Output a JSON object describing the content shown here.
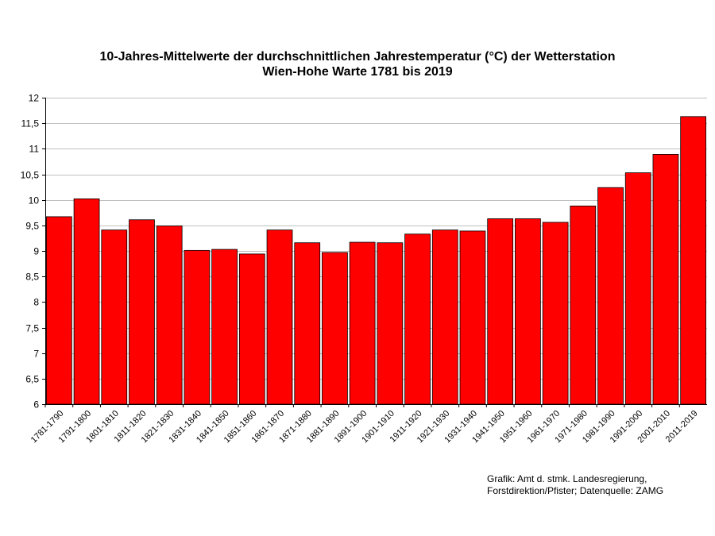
{
  "chart_data": {
    "type": "bar",
    "title": "10-Jahres-Mittelwerte der durchschnittlichen Jahrestemperatur (°C) der Wetterstation",
    "subtitle": "Wien-Hohe Warte 1781 bis 2019",
    "xlabel": "",
    "ylabel": "",
    "ylim": [
      6,
      12
    ],
    "yticks": [
      6,
      6.5,
      7,
      7.5,
      8,
      8.5,
      9,
      9.5,
      10,
      10.5,
      11,
      11.5,
      12
    ],
    "ytick_labels": [
      "6",
      "6,5",
      "7",
      "7,5",
      "8",
      "8,5",
      "9",
      "9,5",
      "10",
      "10,5",
      "11",
      "11,5",
      "12"
    ],
    "grid": true,
    "legend": "none",
    "bar_color": "#ff0000",
    "categories": [
      "1781-1790",
      "1791-1800",
      "1801-1810",
      "1811-1820",
      "1821-1830",
      "1831-1840",
      "1841-1850",
      "1851-1860",
      "1861-1870",
      "1871-1880",
      "1881-1890",
      "1891-1900",
      "1901-1910",
      "1911-1920",
      "1921-1930",
      "1931-1940",
      "1941-1950",
      "1951-1960",
      "1961-1970",
      "1971-1980",
      "1981-1990",
      "1991-2000",
      "2001-2010",
      "2011-2019"
    ],
    "values": [
      9.67,
      10.02,
      9.41,
      9.61,
      9.49,
      9.01,
      9.03,
      8.94,
      9.41,
      9.16,
      8.97,
      9.17,
      9.16,
      9.33,
      9.41,
      9.39,
      9.63,
      9.63,
      9.56,
      9.88,
      10.24,
      10.53,
      10.89,
      11.63
    ]
  },
  "credit": {
    "line1": "Grafik: Amt d. stmk. Landesregierung,",
    "line2": "Forstdirektion/Pfister; Datenquelle: ZAMG"
  }
}
